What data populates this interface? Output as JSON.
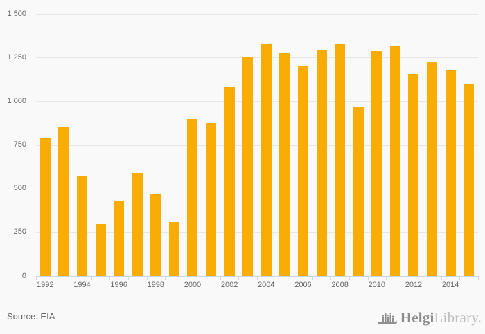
{
  "chart_data": {
    "type": "bar",
    "title": "",
    "xlabel": "",
    "ylabel": "",
    "categories": [
      "1992",
      "1993",
      "1994",
      "1995",
      "1996",
      "1997",
      "1998",
      "1999",
      "2000",
      "2001",
      "2002",
      "2003",
      "2004",
      "2005",
      "2006",
      "2007",
      "2008",
      "2009",
      "2010",
      "2011",
      "2012",
      "2013",
      "2014",
      "2015"
    ],
    "values": [
      790,
      850,
      575,
      295,
      430,
      590,
      470,
      310,
      900,
      875,
      1080,
      1255,
      1330,
      1280,
      1200,
      1290,
      1325,
      965,
      1285,
      1315,
      1155,
      1225,
      1180,
      1095
    ],
    "ylim": [
      0,
      1500
    ],
    "ytick_interval": 250,
    "ytick_labels": [
      "0",
      "250",
      "500",
      "750",
      "1 000",
      "1 250",
      "1 500"
    ],
    "xtick_label_step": 2,
    "grid": true,
    "legend": "none"
  },
  "footer": {
    "source": "Source: EIA"
  },
  "brand": {
    "helgi": "Helgi",
    "library": "Library."
  },
  "colors": {
    "background": "#f9f9f9",
    "bar": "#f9ac04",
    "grid": "#e7e7e7",
    "axis": "#ccd6eb",
    "tick_label": "#666666",
    "source_text": "#666666",
    "brand_dark": "#8c8c8c",
    "brand_light": "#bdbdbd",
    "logo_icon": "#8f8f8f"
  }
}
